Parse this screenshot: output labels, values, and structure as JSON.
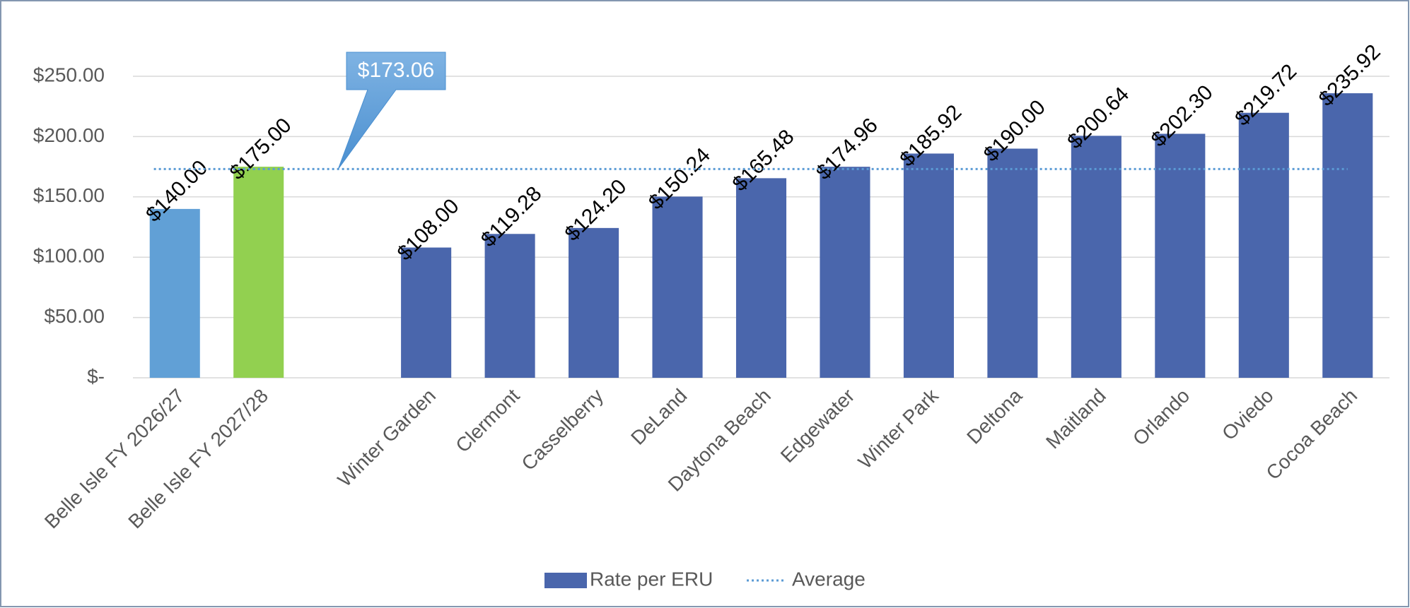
{
  "chart_data": {
    "type": "bar",
    "categories": [
      "Belle Isle FY 2026/27",
      "Belle Isle FY 2027/28",
      null,
      "Winter Garden",
      "Clermont",
      "Casselberry",
      "DeLand",
      "Daytona Beach",
      "Edgewater",
      "Winter Park",
      "Deltona",
      "Maitland",
      "Orlando",
      "Oviedo",
      "Cocoa Beach"
    ],
    "series": [
      {
        "name": "Rate per ERU",
        "color": "#4a66ac",
        "colors": [
          "#61a0d6",
          "#92d050",
          null,
          "#4a66ac",
          "#4a66ac",
          "#4a66ac",
          "#4a66ac",
          "#4a66ac",
          "#4a66ac",
          "#4a66ac",
          "#4a66ac",
          "#4a66ac",
          "#4a66ac",
          "#4a66ac",
          "#4a66ac"
        ],
        "values": [
          140.0,
          175.0,
          null,
          108.0,
          119.28,
          124.2,
          150.24,
          165.48,
          174.96,
          185.92,
          190.0,
          200.64,
          202.3,
          219.72,
          235.92
        ],
        "value_labels": [
          "$140.00",
          "$175.00",
          null,
          "$108.00",
          "$119.28",
          "$124.20",
          "$150.24",
          "$165.48",
          "$174.96",
          "$185.92",
          "$190.00",
          "$200.64",
          "$202.30",
          "$219.72",
          "$235.92"
        ]
      }
    ],
    "average": {
      "name": "Average",
      "color": "#5b9bd5",
      "value": 173.06,
      "value_label": "$173.06"
    },
    "ylim": [
      0,
      250
    ],
    "yticks": [
      {
        "value": 0,
        "label": "$-"
      },
      {
        "value": 50,
        "label": "$50.00"
      },
      {
        "value": 100,
        "label": "$100.00"
      },
      {
        "value": 150,
        "label": "$150.00"
      },
      {
        "value": 200,
        "label": "$200.00"
      },
      {
        "value": 250,
        "label": "$250.00"
      }
    ],
    "grid": true,
    "legend": "bottom"
  }
}
